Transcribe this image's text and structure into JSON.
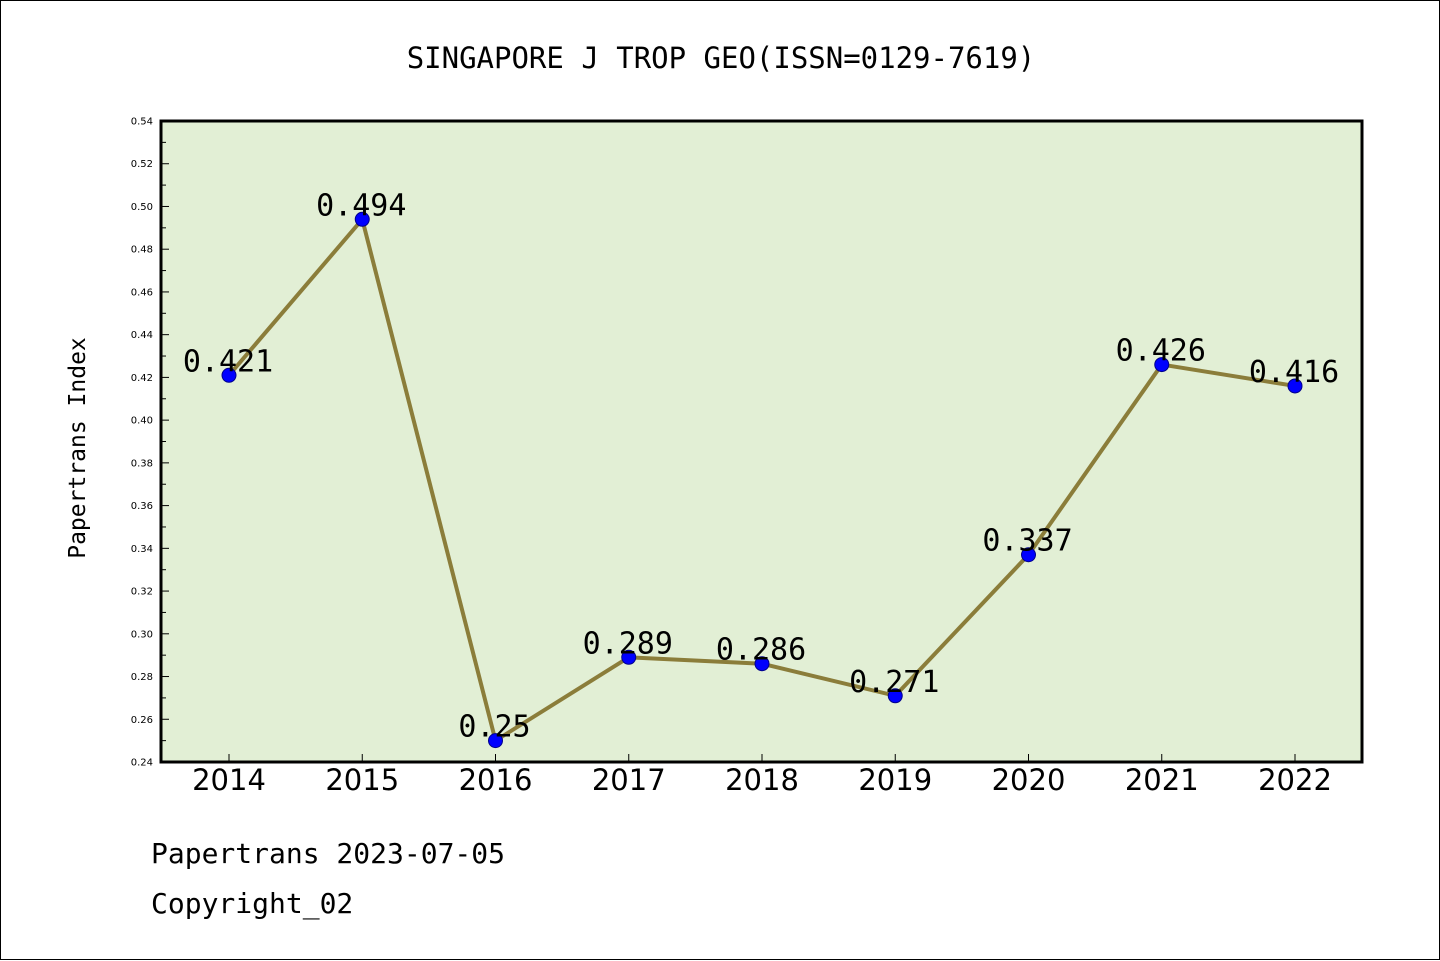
{
  "chart_data": {
    "type": "line",
    "title": "SINGAPORE J TROP GEO(ISSN=0129-7619)",
    "xlabel": "",
    "ylabel": "Papertrans Index",
    "categories": [
      "2014",
      "2015",
      "2016",
      "2017",
      "2018",
      "2019",
      "2020",
      "2021",
      "2022"
    ],
    "values": [
      0.421,
      0.494,
      0.25,
      0.289,
      0.286,
      0.271,
      0.337,
      0.426,
      0.416
    ],
    "data_labels": [
      "0.421",
      "0.494",
      "0.25",
      "0.289",
      "0.286",
      "0.271",
      "0.337",
      "0.426",
      "0.416"
    ],
    "ylim": [
      0.24,
      0.54
    ],
    "yticks": [
      "0.24",
      "0.26",
      "0.28",
      "0.30",
      "0.32",
      "0.34",
      "0.36",
      "0.38",
      "0.40",
      "0.42",
      "0.44",
      "0.46",
      "0.48",
      "0.50",
      "0.52",
      "0.54"
    ],
    "grid": false,
    "legend": "none",
    "colors": {
      "plot_background": "#e2efd5",
      "line": "#8b7d3a",
      "marker": "#0000ff",
      "axis": "#000000"
    }
  },
  "footer": {
    "line1": "Papertrans 2023-07-05",
    "line2": "Copyright_02"
  }
}
